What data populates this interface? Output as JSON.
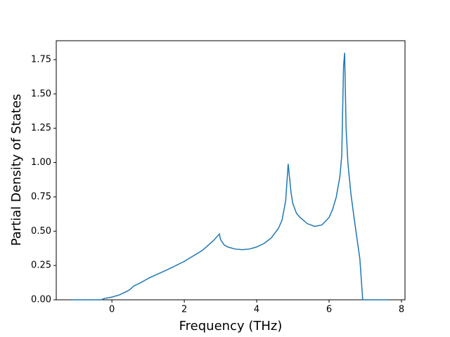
{
  "chart_data": {
    "type": "line",
    "xlabel": "Frequency (THz)",
    "ylabel": "Partial Density of States",
    "x": [
      -1.1,
      -0.3,
      -0.2,
      0,
      0.2,
      0.4,
      0.5,
      0.6,
      0.8,
      0.9,
      1.0,
      1.2,
      1.5,
      2.0,
      2.5,
      2.8,
      2.97,
      3.0,
      3.1,
      3.2,
      3.4,
      3.6,
      3.8,
      4.0,
      4.2,
      4.4,
      4.6,
      4.7,
      4.8,
      4.87,
      4.95,
      5.0,
      5.1,
      5.2,
      5.4,
      5.6,
      5.8,
      6.0,
      6.1,
      6.2,
      6.3,
      6.35,
      6.4,
      6.43,
      6.47,
      6.52,
      6.6,
      6.7,
      6.85,
      6.93,
      7.65
    ],
    "series": [
      {
        "color": "#1f77b4",
        "values": [
          0,
          0,
          0.01,
          0.02,
          0.035,
          0.06,
          0.075,
          0.1,
          0.125,
          0.14,
          0.155,
          0.18,
          0.215,
          0.28,
          0.36,
          0.43,
          0.48,
          0.44,
          0.4,
          0.385,
          0.37,
          0.365,
          0.37,
          0.385,
          0.41,
          0.45,
          0.52,
          0.58,
          0.72,
          0.99,
          0.78,
          0.7,
          0.63,
          0.6,
          0.555,
          0.535,
          0.545,
          0.6,
          0.66,
          0.75,
          0.9,
          1.05,
          1.7,
          1.8,
          1.25,
          1.0,
          0.78,
          0.58,
          0.3,
          0.0,
          0
        ]
      }
    ],
    "xlim": [
      -1.538,
      8.098
    ],
    "xticks": [
      0,
      2,
      4,
      6,
      8
    ],
    "ylim": [
      0,
      1.888
    ],
    "yticks": [
      {
        "value": 0,
        "label": "0.00"
      },
      {
        "value": 0.25,
        "label": "0.25"
      },
      {
        "value": 0.5,
        "label": "0.50"
      },
      {
        "value": 0.75,
        "label": "0.75"
      },
      {
        "value": 1.0,
        "label": "1.00"
      },
      {
        "value": 1.25,
        "label": "1.25"
      },
      {
        "value": 1.5,
        "label": "1.50"
      },
      {
        "value": 1.75,
        "label": "1.75"
      }
    ]
  }
}
